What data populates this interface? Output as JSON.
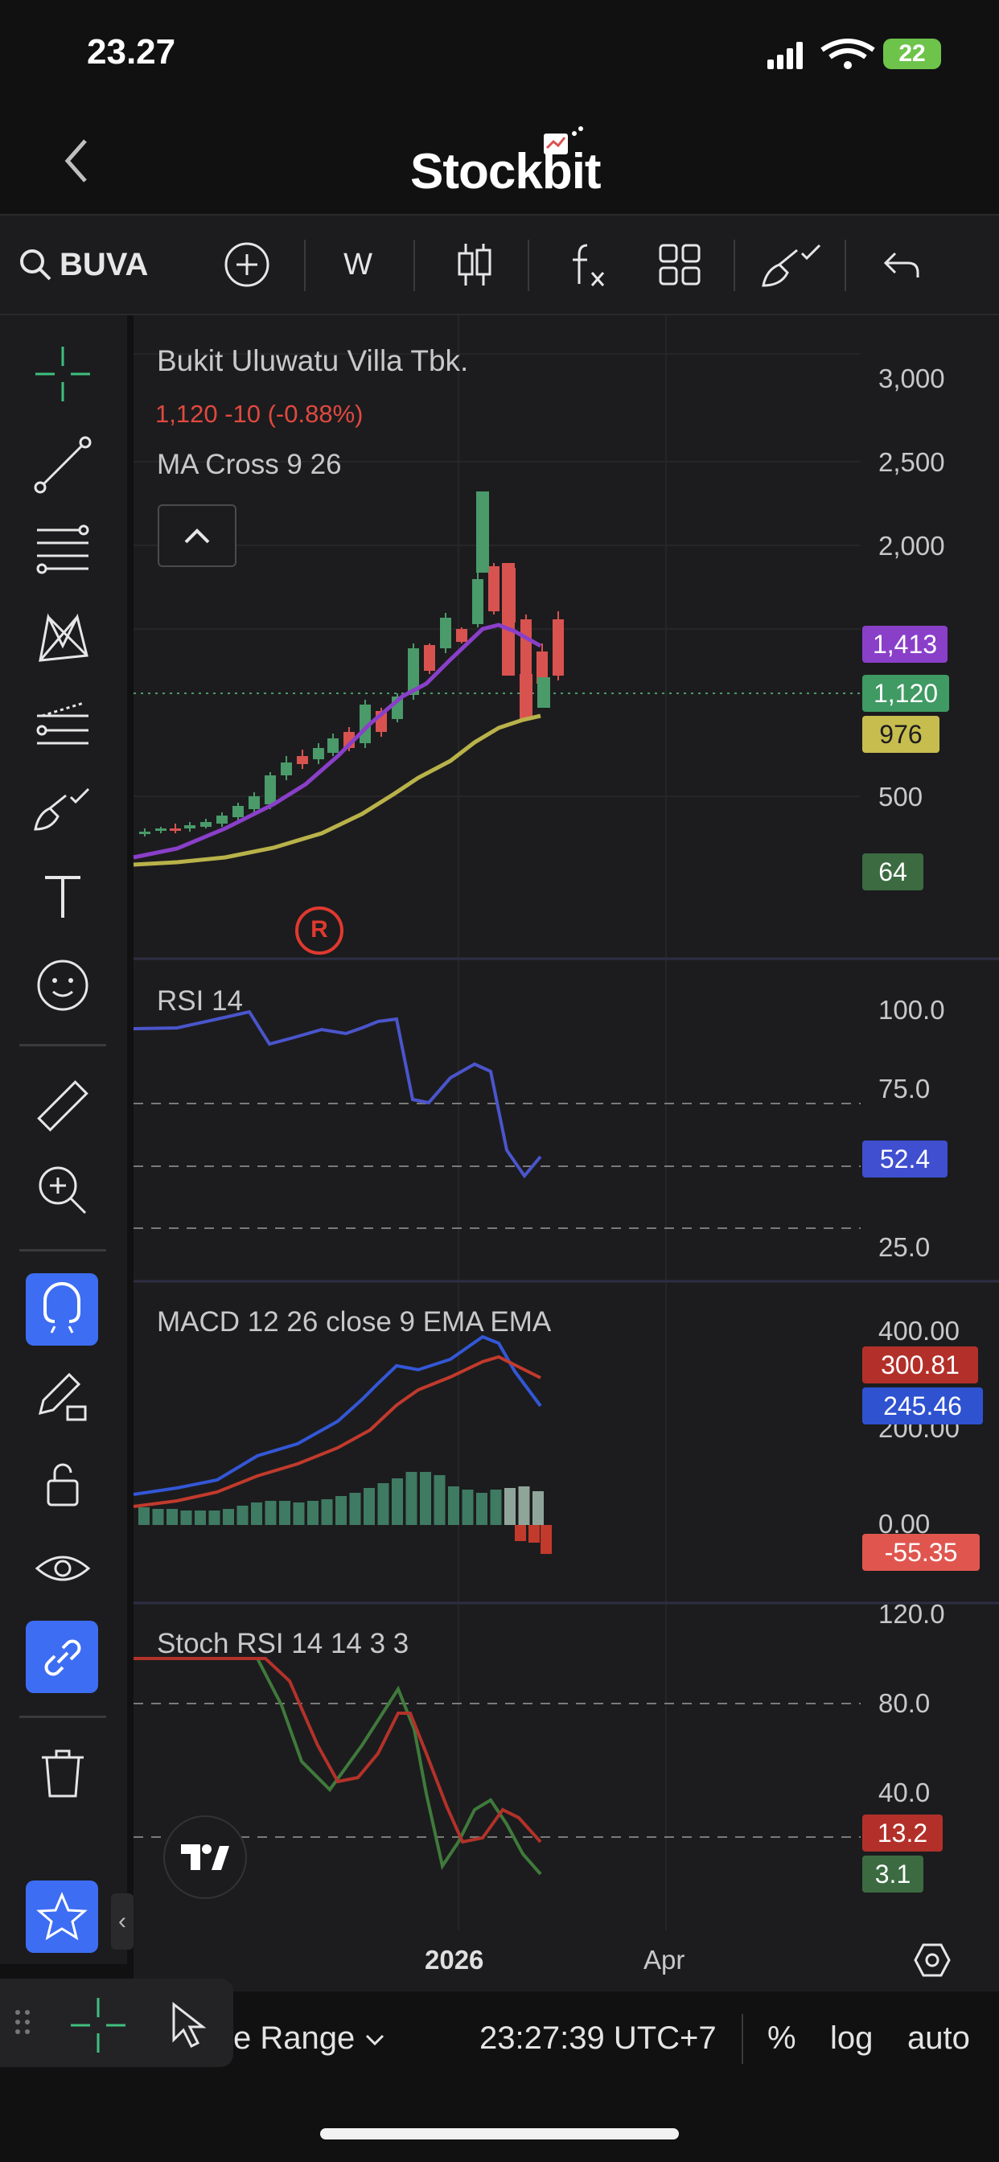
{
  "status_bar": {
    "time": "23.27",
    "battery": "22"
  },
  "header": {
    "brand": "Stockbit"
  },
  "toolbar": {
    "symbol": "BUVA",
    "interval": "W"
  },
  "chart": {
    "company_name": "Bukit Uluwatu Villa Tbk.",
    "price_change": "1,120  -10 (-0.88%)",
    "overlay_label": "MA Cross 9 26",
    "event_marker": "R",
    "price_axis": [
      "3,000",
      "2,500",
      "2,000",
      "500"
    ],
    "price_badges": {
      "ma_fast": "1,413",
      "last_price": "1,120",
      "ma_slow": "976",
      "volume": "64"
    },
    "rsi": {
      "label": "RSI 14",
      "axis": [
        "100.0",
        "75.0",
        "25.0"
      ],
      "badge": "52.4"
    },
    "macd": {
      "label": "MACD 12 26 close 9 EMA EMA",
      "axis": [
        "400.00",
        "200.00",
        "0.00"
      ],
      "badges": {
        "signal": "300.81",
        "macd": "245.46",
        "hist": "-55.35"
      }
    },
    "stoch": {
      "label": "Stoch RSI 14 14 3 3",
      "axis": [
        "120.0",
        "80.0",
        "40.0"
      ],
      "badges": {
        "d": "13.2",
        "k": "3.1"
      }
    },
    "time_axis": {
      "year": "2026",
      "month": "Apr"
    },
    "colors": {
      "up": "#4a9a6a",
      "down": "#d8534f",
      "ma_fast": "#8a3fc9",
      "ma_slow": "#b9b24a",
      "rsi": "#4a55cc",
      "macd": "#3357d6",
      "signal": "#c23a2c",
      "stoch_k": "#3f7a3b",
      "stoch_d": "#b3322a"
    }
  },
  "bottom_bar": {
    "range_label": "e Range",
    "clock": "23:27:39 UTC+7",
    "percent": "%",
    "log": "log",
    "auto": "auto"
  }
}
